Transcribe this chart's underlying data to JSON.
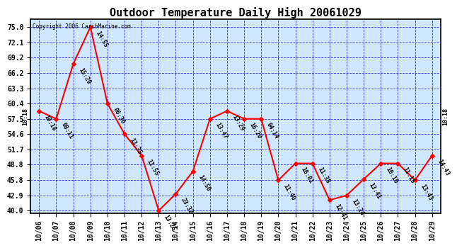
{
  "title": "Outdoor Temperature Daily High 20061029",
  "copyright": "Copyright 2006 CaribMarine.com",
  "x_labels": [
    "10/06",
    "10/07",
    "10/08",
    "10/09",
    "10/10",
    "10/11",
    "10/12",
    "10/13",
    "10/14",
    "10/15",
    "10/16",
    "10/17",
    "10/18",
    "10/19",
    "10/20",
    "10/21",
    "10/22",
    "10/23",
    "10/24",
    "10/25",
    "10/26",
    "10/27",
    "10/28",
    "10/29"
  ],
  "y_values": [
    59.0,
    57.5,
    68.0,
    75.0,
    60.4,
    54.6,
    50.5,
    40.0,
    43.2,
    47.5,
    57.5,
    59.0,
    57.5,
    57.5,
    45.8,
    49.0,
    49.0,
    42.0,
    42.9,
    46.0,
    49.0,
    49.0,
    45.8,
    50.5
  ],
  "time_labels": [
    "10:18",
    "08:11",
    "15:29",
    "14:55",
    "06:36",
    "13:35",
    "11:55",
    "13:25",
    "23:32",
    "14:50",
    "13:47",
    "13:29",
    "16:20",
    "04:14",
    "11:40",
    "16:01",
    "11:38",
    "12:41",
    "13:24",
    "13:41",
    "10:16",
    "11:15",
    "13:43",
    "14:43"
  ],
  "y_ticks": [
    40.0,
    42.9,
    45.8,
    48.8,
    51.7,
    54.6,
    57.5,
    60.4,
    63.3,
    66.2,
    69.2,
    72.1,
    75.0
  ],
  "y_min": 39.5,
  "y_max": 76.5,
  "line_color": "#ff0000",
  "marker_color": "#ff0000",
  "bg_color": "#ffffff",
  "plot_bg_color": "#d0e8ff",
  "grid_color": "#3333cc",
  "title_fontsize": 11,
  "tick_fontsize": 7,
  "label_fontsize": 6
}
